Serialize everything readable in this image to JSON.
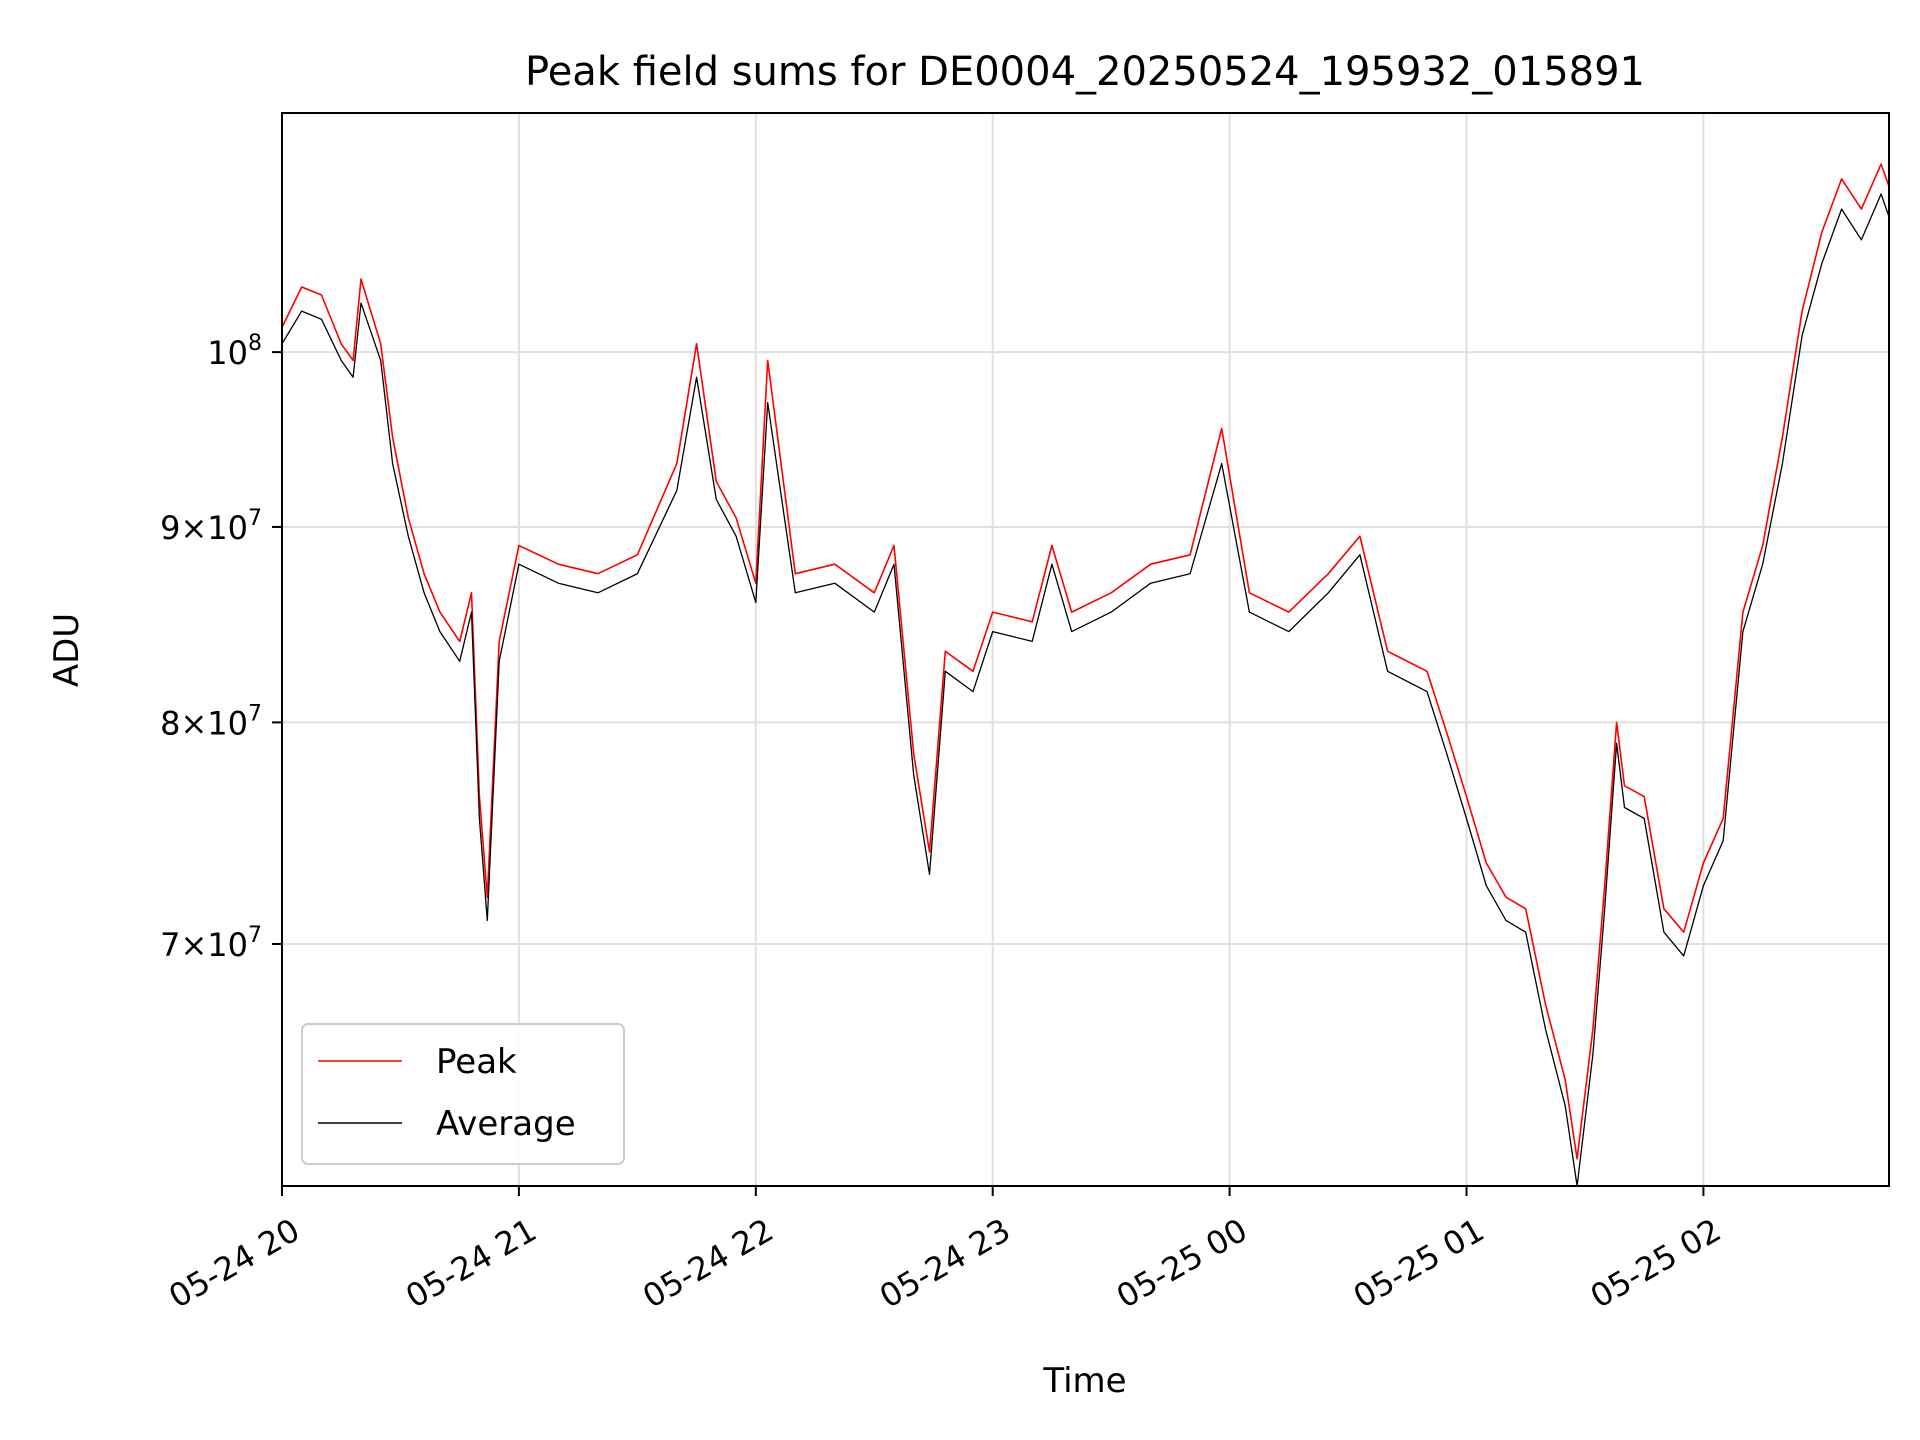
{
  "chart_data": {
    "type": "line",
    "title": "Peak field sums for DE0004_20250524_195932_015891",
    "xlabel": "Time",
    "ylabel": "ADU",
    "y_scale": "log",
    "xlim": [
      "2025-05-24 20:00",
      "2025-05-25 02:47"
    ],
    "ylim": [
      60500000,
      115500000
    ],
    "x_ticks": [
      {
        "value": "2025-05-24 20:00",
        "label": "05-24 20"
      },
      {
        "value": "2025-05-24 21:00",
        "label": "05-24 21"
      },
      {
        "value": "2025-05-24 22:00",
        "label": "05-24 22"
      },
      {
        "value": "2025-05-24 23:00",
        "label": "05-24 23"
      },
      {
        "value": "2025-05-25 00:00",
        "label": "05-25 00"
      },
      {
        "value": "2025-05-25 01:00",
        "label": "05-25 01"
      },
      {
        "value": "2025-05-25 02:00",
        "label": "05-25 02"
      }
    ],
    "y_ticks": [
      {
        "value": 70000000,
        "mant": "7",
        "exp": "7"
      },
      {
        "value": 80000000,
        "mant": "8",
        "exp": "7"
      },
      {
        "value": 90000000,
        "mant": "9",
        "exp": "7"
      },
      {
        "value": 100000000,
        "mant": "",
        "exp": "8"
      }
    ],
    "grid": true,
    "legend_position": "lower-left",
    "series": [
      {
        "name": "Peak",
        "color": "#ff0000",
        "x": [
          "2025-05-24 20:00",
          "2025-05-24 20:05",
          "2025-05-24 20:10",
          "2025-05-24 20:15",
          "2025-05-24 20:18",
          "2025-05-24 20:20",
          "2025-05-24 20:25",
          "2025-05-24 20:28",
          "2025-05-24 20:32",
          "2025-05-24 20:36",
          "2025-05-24 20:40",
          "2025-05-24 20:45",
          "2025-05-24 20:48",
          "2025-05-24 20:50",
          "2025-05-24 20:52",
          "2025-05-24 20:55",
          "2025-05-24 21:00",
          "2025-05-24 21:10",
          "2025-05-24 21:20",
          "2025-05-24 21:30",
          "2025-05-24 21:40",
          "2025-05-24 21:45",
          "2025-05-24 21:50",
          "2025-05-24 21:55",
          "2025-05-24 22:00",
          "2025-05-24 22:03",
          "2025-05-24 22:10",
          "2025-05-24 22:20",
          "2025-05-24 22:30",
          "2025-05-24 22:35",
          "2025-05-24 22:40",
          "2025-05-24 22:44",
          "2025-05-24 22:48",
          "2025-05-24 22:55",
          "2025-05-24 23:00",
          "2025-05-24 23:10",
          "2025-05-24 23:15",
          "2025-05-24 23:20",
          "2025-05-24 23:30",
          "2025-05-24 23:40",
          "2025-05-24 23:50",
          "2025-05-24 23:58",
          "2025-05-25 00:05",
          "2025-05-25 00:15",
          "2025-05-25 00:25",
          "2025-05-25 00:33",
          "2025-05-25 00:40",
          "2025-05-25 00:50",
          "2025-05-25 00:55",
          "2025-05-25 01:00",
          "2025-05-25 01:05",
          "2025-05-25 01:10",
          "2025-05-25 01:15",
          "2025-05-25 01:20",
          "2025-05-25 01:25",
          "2025-05-25 01:28",
          "2025-05-25 01:32",
          "2025-05-25 01:35",
          "2025-05-25 01:38",
          "2025-05-25 01:40",
          "2025-05-25 01:45",
          "2025-05-25 01:50",
          "2025-05-25 01:55",
          "2025-05-25 02:00",
          "2025-05-25 02:05",
          "2025-05-25 02:10",
          "2025-05-25 02:15",
          "2025-05-25 02:20",
          "2025-05-25 02:25",
          "2025-05-25 02:30",
          "2025-05-25 02:35",
          "2025-05-25 02:40",
          "2025-05-25 02:45",
          "2025-05-25 02:47"
        ],
        "values": [
          101500000,
          104000000,
          103500000,
          100500000,
          99500000,
          104500000,
          100500000,
          95000000,
          90500000,
          87500000,
          85500000,
          84000000,
          86500000,
          76500000,
          72000000,
          84000000,
          89000000,
          88000000,
          87500000,
          88500000,
          93500000,
          100500000,
          92500000,
          90500000,
          87000000,
          99500000,
          87500000,
          88000000,
          86500000,
          89000000,
          78500000,
          74000000,
          83500000,
          82500000,
          85500000,
          85000000,
          89000000,
          85500000,
          86500000,
          88000000,
          88500000,
          95500000,
          86500000,
          85500000,
          87500000,
          89500000,
          83500000,
          82500000,
          79500000,
          76500000,
          73500000,
          72000000,
          71500000,
          67500000,
          64500000,
          61500000,
          66500000,
          72500000,
          80000000,
          77000000,
          76500000,
          71500000,
          70500000,
          73500000,
          75500000,
          85500000,
          89000000,
          95000000,
          102500000,
          107500000,
          111000000,
          109000000,
          112000000,
          110500000
        ]
      },
      {
        "name": "Average",
        "color": "#000000",
        "x": [
          "2025-05-24 20:00",
          "2025-05-24 20:05",
          "2025-05-24 20:10",
          "2025-05-24 20:15",
          "2025-05-24 20:18",
          "2025-05-24 20:20",
          "2025-05-24 20:25",
          "2025-05-24 20:28",
          "2025-05-24 20:32",
          "2025-05-24 20:36",
          "2025-05-24 20:40",
          "2025-05-24 20:45",
          "2025-05-24 20:48",
          "2025-05-24 20:50",
          "2025-05-24 20:52",
          "2025-05-24 20:55",
          "2025-05-24 21:00",
          "2025-05-24 21:10",
          "2025-05-24 21:20",
          "2025-05-24 21:30",
          "2025-05-24 21:40",
          "2025-05-24 21:45",
          "2025-05-24 21:50",
          "2025-05-24 21:55",
          "2025-05-24 22:00",
          "2025-05-24 22:03",
          "2025-05-24 22:10",
          "2025-05-24 22:20",
          "2025-05-24 22:30",
          "2025-05-24 22:35",
          "2025-05-24 22:40",
          "2025-05-24 22:44",
          "2025-05-24 22:48",
          "2025-05-24 22:55",
          "2025-05-24 23:00",
          "2025-05-24 23:10",
          "2025-05-24 23:15",
          "2025-05-24 23:20",
          "2025-05-24 23:30",
          "2025-05-24 23:40",
          "2025-05-24 23:50",
          "2025-05-24 23:58",
          "2025-05-25 00:05",
          "2025-05-25 00:15",
          "2025-05-25 00:25",
          "2025-05-25 00:33",
          "2025-05-25 00:40",
          "2025-05-25 00:50",
          "2025-05-25 00:55",
          "2025-05-25 01:00",
          "2025-05-25 01:05",
          "2025-05-25 01:10",
          "2025-05-25 01:15",
          "2025-05-25 01:20",
          "2025-05-25 01:25",
          "2025-05-25 01:28",
          "2025-05-25 01:32",
          "2025-05-25 01:35",
          "2025-05-25 01:38",
          "2025-05-25 01:40",
          "2025-05-25 01:45",
          "2025-05-25 01:50",
          "2025-05-25 01:55",
          "2025-05-25 02:00",
          "2025-05-25 02:05",
          "2025-05-25 02:10",
          "2025-05-25 02:15",
          "2025-05-25 02:20",
          "2025-05-25 02:25",
          "2025-05-25 02:30",
          "2025-05-25 02:35",
          "2025-05-25 02:40",
          "2025-05-25 02:45",
          "2025-05-25 02:47"
        ],
        "values": [
          100500000,
          102500000,
          102000000,
          99500000,
          98500000,
          103000000,
          99500000,
          93500000,
          89500000,
          86500000,
          84500000,
          83000000,
          85500000,
          75500000,
          71000000,
          83000000,
          88000000,
          87000000,
          86500000,
          87500000,
          92000000,
          98500000,
          91500000,
          89500000,
          86000000,
          97000000,
          86500000,
          87000000,
          85500000,
          88000000,
          77500000,
          73000000,
          82500000,
          81500000,
          84500000,
          84000000,
          88000000,
          84500000,
          85500000,
          87000000,
          87500000,
          93500000,
          85500000,
          84500000,
          86500000,
          88500000,
          82500000,
          81500000,
          78500000,
          75500000,
          72500000,
          71000000,
          70500000,
          66500000,
          63500000,
          60500000,
          65500000,
          71500000,
          79000000,
          76000000,
          75500000,
          70500000,
          69500000,
          72500000,
          74500000,
          84500000,
          88000000,
          93500000,
          101000000,
          105500000,
          109000000,
          107000000,
          110000000,
          108500000
        ]
      }
    ]
  }
}
